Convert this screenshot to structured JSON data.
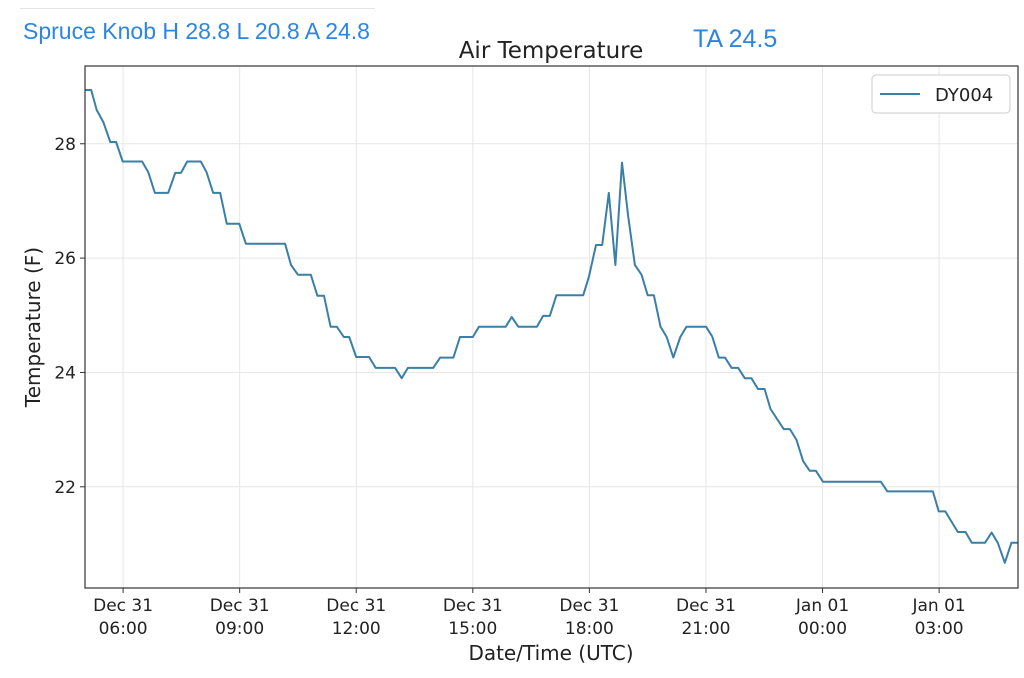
{
  "header": {
    "station_summary": "Spruce Knob H 28.8 L 20.8 A 24.8",
    "ta_label": "TA 24.5"
  },
  "chart_data": {
    "type": "line",
    "title": "Air Temperature",
    "xlabel": "Date/Time (UTC)",
    "ylabel": "Temperature (F)",
    "x_units": "hours since Dec 31 00:00 UTC",
    "xlim": [
      5.02,
      29.03
    ],
    "ylim": [
      20.23,
      29.36
    ],
    "grid": true,
    "legend_position": "top-right",
    "line_color": "#3a7fa6",
    "x_ticks": [
      {
        "x": 6,
        "l1": "Dec 31",
        "l2": "06:00"
      },
      {
        "x": 9,
        "l1": "Dec 31",
        "l2": "09:00"
      },
      {
        "x": 12,
        "l1": "Dec 31",
        "l2": "12:00"
      },
      {
        "x": 15,
        "l1": "Dec 31",
        "l2": "15:00"
      },
      {
        "x": 18,
        "l1": "Dec 31",
        "l2": "18:00"
      },
      {
        "x": 21,
        "l1": "Dec 31",
        "l2": "21:00"
      },
      {
        "x": 24,
        "l1": "Jan 01",
        "l2": "00:00"
      },
      {
        "x": 27,
        "l1": "Jan 01",
        "l2": "03:00"
      }
    ],
    "y_ticks": [
      22,
      24,
      26,
      28
    ],
    "y_tick_labels": [
      "22",
      "24",
      "26",
      "28"
    ],
    "series": [
      {
        "name": "DY004",
        "x": [
          5.02,
          5.18,
          5.32,
          5.49,
          5.67,
          5.82,
          5.99,
          6.49,
          6.65,
          6.82,
          7.16,
          7.34,
          7.49,
          7.65,
          8.0,
          8.15,
          8.32,
          8.5,
          8.67,
          8.99,
          9.16,
          10.17,
          10.32,
          10.5,
          10.83,
          11.0,
          11.17,
          11.34,
          11.5,
          11.68,
          11.82,
          12.0,
          12.33,
          12.5,
          13.0,
          13.17,
          13.33,
          13.98,
          14.16,
          14.5,
          14.67,
          15.0,
          15.16,
          15.85,
          16.0,
          16.17,
          16.65,
          16.81,
          16.98,
          17.15,
          17.84,
          17.99,
          18.17,
          18.33,
          18.5,
          18.67,
          18.84,
          19.0,
          19.17,
          19.34,
          19.5,
          19.66,
          19.83,
          19.99,
          20.16,
          20.34,
          20.5,
          21.0,
          21.16,
          21.33,
          21.49,
          21.66,
          21.83,
          22.0,
          22.17,
          22.34,
          22.51,
          22.66,
          23.0,
          23.16,
          23.33,
          23.5,
          23.67,
          23.83,
          24.01,
          25.5,
          25.67,
          26.84,
          26.99,
          27.16,
          27.48,
          27.68,
          27.84,
          28.18,
          28.35,
          28.51,
          28.69,
          28.86,
          29.03
        ],
        "y": [
          28.94,
          28.94,
          28.59,
          28.38,
          28.03,
          28.03,
          27.69,
          27.69,
          27.5,
          27.14,
          27.14,
          27.49,
          27.49,
          27.69,
          27.69,
          27.5,
          27.14,
          27.14,
          26.6,
          26.6,
          26.25,
          26.25,
          25.88,
          25.71,
          25.71,
          25.34,
          25.34,
          24.8,
          24.8,
          24.62,
          24.62,
          24.27,
          24.27,
          24.08,
          24.08,
          23.9,
          24.08,
          24.08,
          24.26,
          24.26,
          24.62,
          24.62,
          24.8,
          24.8,
          24.97,
          24.8,
          24.8,
          24.99,
          24.99,
          25.35,
          25.35,
          25.68,
          26.23,
          26.23,
          27.14,
          25.88,
          27.67,
          26.73,
          25.88,
          25.71,
          25.35,
          25.35,
          24.8,
          24.62,
          24.26,
          24.62,
          24.8,
          24.8,
          24.63,
          24.26,
          24.26,
          24.08,
          24.08,
          23.9,
          23.9,
          23.71,
          23.71,
          23.36,
          23.01,
          23.01,
          22.82,
          22.45,
          22.28,
          22.28,
          22.09,
          22.09,
          21.92,
          21.92,
          21.57,
          21.57,
          21.21,
          21.21,
          21.02,
          21.02,
          21.2,
          21.02,
          20.67,
          21.02,
          21.02
        ]
      }
    ]
  }
}
